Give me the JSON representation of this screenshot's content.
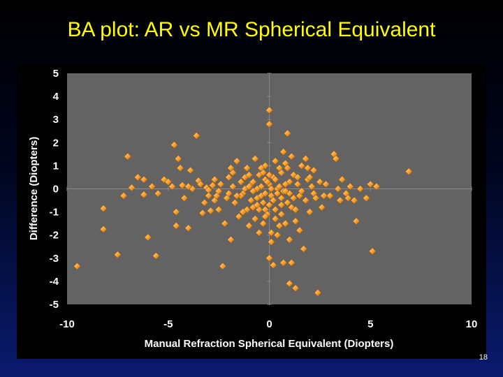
{
  "slide": {
    "title": "BA plot: AR vs MR Spherical Equivalent",
    "number": "18"
  },
  "colors": {
    "plot_background": "#636363",
    "point_fill": "#f5a030",
    "point_highlight": "#ffd590",
    "point_shadow": "#a05a10",
    "title": "#ffff00"
  },
  "chart_data": {
    "type": "scatter",
    "title": "",
    "xlabel": "Manual Refraction Spherical Equivalent (Diopters)",
    "ylabel": "Difference (Diopters)",
    "xlim": [
      -10,
      10
    ],
    "ylim": [
      -5,
      5
    ],
    "xticks": [
      "-10",
      "-5",
      "0",
      "5",
      "10"
    ],
    "yticks": [
      "5",
      "4",
      "3",
      "2",
      "1",
      "0",
      "-1",
      "-2",
      "-3",
      "-4",
      "-5"
    ],
    "grid": false,
    "legend": "none",
    "marker": "diamond",
    "points": [
      [
        -9.5,
        -3.35
      ],
      [
        -8.2,
        -0.85
      ],
      [
        -8.2,
        -1.75
      ],
      [
        -7.5,
        -2.85
      ],
      [
        -7.2,
        -0.3
      ],
      [
        -7.0,
        1.4
      ],
      [
        -6.8,
        0.05
      ],
      [
        -6.5,
        0.5
      ],
      [
        -6.2,
        0.4
      ],
      [
        -6.2,
        -0.25
      ],
      [
        -6.0,
        -2.1
      ],
      [
        -5.8,
        0.1
      ],
      [
        -5.6,
        -2.9
      ],
      [
        -5.5,
        -0.2
      ],
      [
        -5.2,
        0.4
      ],
      [
        -5.0,
        0.3
      ],
      [
        -4.8,
        0.1
      ],
      [
        -4.7,
        1.9
      ],
      [
        -4.6,
        -1.0
      ],
      [
        -4.6,
        -1.6
      ],
      [
        -4.5,
        1.3
      ],
      [
        -4.4,
        0.9
      ],
      [
        -4.3,
        0.15
      ],
      [
        -4.2,
        -0.4
      ],
      [
        -4.0,
        -1.7
      ],
      [
        -3.9,
        0.8
      ],
      [
        -3.8,
        0.0
      ],
      [
        -3.6,
        2.3
      ],
      [
        -3.5,
        0.35
      ],
      [
        -3.4,
        0.2
      ],
      [
        -3.3,
        -1.05
      ],
      [
        -3.2,
        -0.6
      ],
      [
        -3.1,
        0.05
      ],
      [
        -3.0,
        -0.05
      ],
      [
        -2.9,
        -0.95
      ],
      [
        -2.8,
        0.15
      ],
      [
        -2.7,
        -0.5
      ],
      [
        -2.6,
        -0.3
      ],
      [
        -2.5,
        -0.1
      ],
      [
        -2.4,
        0.2
      ],
      [
        -2.3,
        -3.35
      ],
      [
        -2.2,
        -1.5
      ],
      [
        -2.1,
        -0.4
      ],
      [
        -2.0,
        0.5
      ],
      [
        -1.9,
        -2.2
      ],
      [
        -1.8,
        0.7
      ],
      [
        -1.7,
        -0.6
      ],
      [
        -1.6,
        1.2
      ],
      [
        -1.5,
        -1.2
      ],
      [
        -1.4,
        0.3
      ],
      [
        -1.3,
        -0.2
      ],
      [
        -1.2,
        0.0
      ],
      [
        -1.1,
        0.9
      ],
      [
        -1.0,
        -1.6
      ],
      [
        -0.9,
        0.2
      ],
      [
        -0.8,
        -0.8
      ],
      [
        -0.7,
        1.3
      ],
      [
        -0.6,
        -0.4
      ],
      [
        -0.5,
        0.6
      ],
      [
        -0.5,
        -1.9
      ],
      [
        -0.4,
        0.1
      ],
      [
        -0.3,
        -0.6
      ],
      [
        -0.2,
        0.4
      ],
      [
        -0.1,
        -1.1
      ],
      [
        0.0,
        3.4
      ],
      [
        0.0,
        2.8
      ],
      [
        0.0,
        0.2
      ],
      [
        0.1,
        -0.3
      ],
      [
        0.1,
        -2.3
      ],
      [
        0.2,
        0.5
      ],
      [
        0.3,
        -0.9
      ],
      [
        0.4,
        0.0
      ],
      [
        0.5,
        -1.6
      ],
      [
        0.6,
        0.7
      ],
      [
        0.7,
        -0.1
      ],
      [
        0.7,
        -3.2
      ],
      [
        0.8,
        1.1
      ],
      [
        0.9,
        -0.6
      ],
      [
        0.9,
        2.4
      ],
      [
        1.0,
        0.3
      ],
      [
        1.0,
        -4.1
      ],
      [
        1.1,
        -0.8
      ],
      [
        1.2,
        0.6
      ],
      [
        1.3,
        -1.4
      ],
      [
        1.3,
        -4.3
      ],
      [
        1.4,
        0.2
      ],
      [
        1.5,
        -0.3
      ],
      [
        1.6,
        1.0
      ],
      [
        1.7,
        -2.6
      ],
      [
        1.8,
        -0.5
      ],
      [
        1.9,
        0.4
      ],
      [
        2.0,
        -1.0
      ],
      [
        2.1,
        0.1
      ],
      [
        2.2,
        0.8
      ],
      [
        2.3,
        -0.4
      ],
      [
        2.4,
        -4.5
      ],
      [
        2.5,
        0.3
      ],
      [
        2.6,
        -0.8
      ],
      [
        2.8,
        0.2
      ],
      [
        3.0,
        -0.3
      ],
      [
        3.2,
        1.5
      ],
      [
        3.3,
        1.3
      ],
      [
        3.4,
        0.0
      ],
      [
        3.5,
        -0.5
      ],
      [
        3.6,
        0.4
      ],
      [
        3.8,
        -0.2
      ],
      [
        4.0,
        0.1
      ],
      [
        4.2,
        -0.5
      ],
      [
        4.3,
        -1.4
      ],
      [
        4.5,
        0.0
      ],
      [
        4.8,
        -0.4
      ],
      [
        5.0,
        0.2
      ],
      [
        5.1,
        -2.7
      ],
      [
        5.3,
        0.1
      ],
      [
        6.9,
        0.75
      ],
      [
        -1.4,
        -0.3
      ],
      [
        -1.2,
        0.5
      ],
      [
        -1.0,
        0.1
      ],
      [
        -0.9,
        -0.5
      ],
      [
        -0.8,
        0.3
      ],
      [
        -0.6,
        0.0
      ],
      [
        -0.4,
        -0.3
      ],
      [
        -0.3,
        0.7
      ],
      [
        -0.2,
        -0.2
      ],
      [
        -0.1,
        0.3
      ],
      [
        0.1,
        0.0
      ],
      [
        0.2,
        -0.5
      ],
      [
        0.3,
        0.4
      ],
      [
        0.4,
        -0.2
      ],
      [
        0.5,
        0.1
      ],
      [
        0.6,
        -0.4
      ],
      [
        0.8,
        0.2
      ],
      [
        1.0,
        -0.2
      ],
      [
        1.2,
        -0.4
      ],
      [
        1.4,
        0.5
      ],
      [
        1.6,
        -0.1
      ],
      [
        -2.0,
        -0.2
      ],
      [
        -1.8,
        0.1
      ],
      [
        -1.6,
        -0.3
      ],
      [
        -1.0,
        0.6
      ],
      [
        0.0,
        -0.7
      ],
      [
        0.6,
        -1.1
      ],
      [
        1.1,
        1.4
      ],
      [
        1.5,
        -1.8
      ],
      [
        2.0,
        0.5
      ],
      [
        2.2,
        -0.2
      ],
      [
        -0.7,
        -1.3
      ],
      [
        -1.1,
        -0.9
      ],
      [
        0.4,
        -2.0
      ],
      [
        0.8,
        -1.5
      ],
      [
        -0.2,
        1.0
      ],
      [
        0.3,
        1.2
      ],
      [
        -0.5,
        -0.9
      ],
      [
        0.9,
        0.9
      ],
      [
        -2.7,
        0.4
      ],
      [
        -3.0,
        -0.3
      ],
      [
        1.8,
        1.3
      ],
      [
        -0.3,
        -1.5
      ],
      [
        0.7,
        1.6
      ],
      [
        0.2,
        -3.3
      ],
      [
        -1.3,
        -1.0
      ],
      [
        1.3,
        -0.9
      ],
      [
        0.0,
        -3.0
      ],
      [
        -2.5,
        -0.9
      ],
      [
        2.7,
        -0.3
      ],
      [
        -4.0,
        0.1
      ],
      [
        3.9,
        -0.4
      ],
      [
        -1.9,
        0.9
      ],
      [
        1.9,
        0.9
      ],
      [
        -0.8,
        -0.1
      ],
      [
        0.8,
        -0.1
      ],
      [
        0.0,
        0.6
      ],
      [
        -0.4,
        0.9
      ],
      [
        0.5,
        0.9
      ],
      [
        -0.6,
        -0.7
      ],
      [
        0.6,
        -0.7
      ],
      [
        0.3,
        -1.3
      ],
      [
        -0.2,
        -0.9
      ],
      [
        1.0,
        -2.2
      ],
      [
        1.1,
        -3.2
      ],
      [
        -0.2,
        -1.2
      ],
      [
        0.1,
        -1.9
      ]
    ]
  }
}
